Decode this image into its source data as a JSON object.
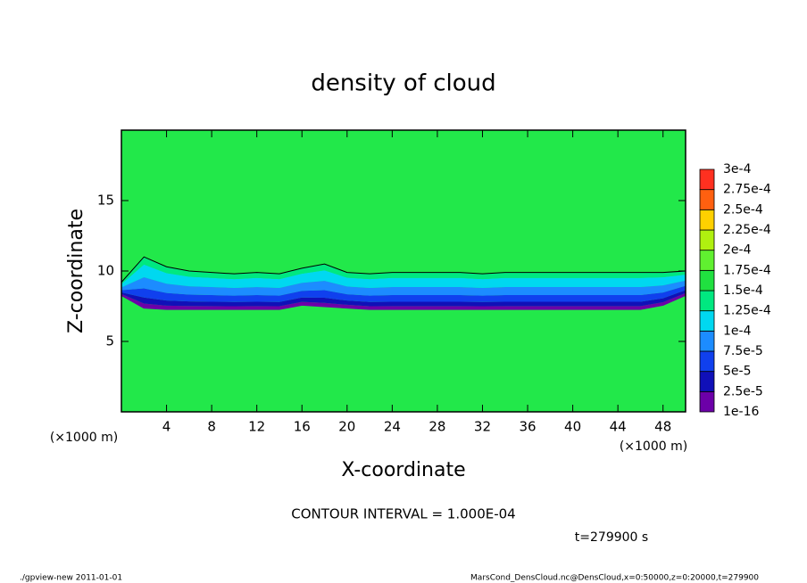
{
  "chart_data": {
    "type": "contour",
    "title": "density of cloud",
    "xlabel": "X-coordinate",
    "ylabel": "Z-coordinate",
    "xunit": "(×1000 m)",
    "yunit": "(×1000 m)",
    "xlim": [
      0,
      50
    ],
    "ylim": [
      0,
      20
    ],
    "xticks": [
      4,
      8,
      12,
      16,
      20,
      24,
      28,
      32,
      36,
      40,
      44,
      48
    ],
    "yticks": [
      5,
      10,
      15
    ],
    "x": [
      0,
      2,
      4,
      6,
      8,
      10,
      12,
      14,
      16,
      18,
      20,
      22,
      24,
      26,
      28,
      30,
      32,
      34,
      36,
      38,
      40,
      42,
      44,
      46,
      48,
      50
    ],
    "cloud_base": [
      8.3,
      7.4,
      7.3,
      7.3,
      7.3,
      7.3,
      7.3,
      7.3,
      7.6,
      7.5,
      7.4,
      7.3,
      7.3,
      7.3,
      7.3,
      7.3,
      7.3,
      7.3,
      7.3,
      7.3,
      7.3,
      7.3,
      7.3,
      7.3,
      7.6,
      8.3
    ],
    "contour": [
      9.2,
      11,
      10.3,
      10,
      9.9,
      9.8,
      9.9,
      9.8,
      10.2,
      10.5,
      9.9,
      9.8,
      9.9,
      9.9,
      9.9,
      9.9,
      9.8,
      9.9,
      9.9,
      9.9,
      9.9,
      9.9,
      9.9,
      9.9,
      9.9,
      10
    ],
    "field_color": "#22e84a",
    "levels": [
      {
        "value": 1e-16,
        "label": "1e-16"
      },
      {
        "value": 2.5e-05,
        "label": "2.5e-5"
      },
      {
        "value": 5e-05,
        "label": "5e-5"
      },
      {
        "value": 7.5e-05,
        "label": "7.5e-5"
      },
      {
        "value": 0.0001,
        "label": "1e-4"
      },
      {
        "value": 0.000125,
        "label": "1.25e-4"
      },
      {
        "value": 0.00015,
        "label": "1.5e-4"
      },
      {
        "value": 0.000175,
        "label": "1.75e-4"
      },
      {
        "value": 0.0002,
        "label": "2e-4"
      },
      {
        "value": 0.000225,
        "label": "2.25e-4"
      },
      {
        "value": 0.00025,
        "label": "2.5e-4"
      },
      {
        "value": 0.000275,
        "label": "2.75e-4"
      },
      {
        "value": 0.0003,
        "label": "3e-4"
      }
    ],
    "level_colors": [
      "#6c00a8",
      "#1010b8",
      "#1040ee",
      "#1c8cff",
      "#00d8f0",
      "#00e880",
      "#20e040",
      "#60f030",
      "#b0f010",
      "#ffd000",
      "#ff6010",
      "#ff3020"
    ],
    "contour_interval": "CONTOUR INTERVAL = 1.000E-04",
    "time": "t=279900 s",
    "footer_left": "./gpview-new  2011-01-01",
    "footer_right": "MarsCond_DensCloud.nc@DensCloud,x=0:50000,z=0:20000,t=279900"
  }
}
